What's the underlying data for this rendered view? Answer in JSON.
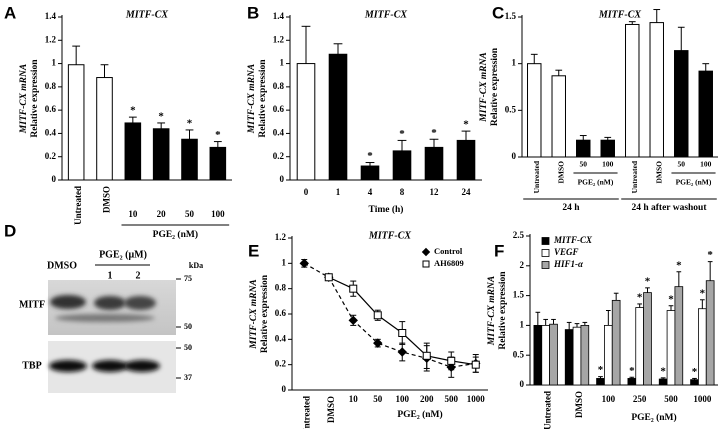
{
  "chart_data": [
    {
      "panel": "A",
      "type": "bar",
      "title": "MITF-CX",
      "ylabel": [
        "MITF-CX mRNA",
        "Relative expression"
      ],
      "categories": [
        "Untreated",
        "DMSO",
        "10",
        "20",
        "50",
        "100"
      ],
      "values": [
        0.99,
        0.88,
        0.49,
        0.44,
        0.35,
        0.28
      ],
      "errors": [
        0.16,
        0.11,
        0.05,
        0.05,
        0.08,
        0.05
      ],
      "colors": [
        "#ffffff",
        "#ffffff",
        "#000000",
        "#000000",
        "#000000",
        "#000000"
      ],
      "stars": [
        null,
        null,
        "*",
        "*",
        "*",
        "*"
      ],
      "group_labels": [
        "PGE₂ (nM)"
      ],
      "ylim": [
        0,
        1.4
      ],
      "yticks": [
        0,
        0.2,
        0.4,
        0.6,
        0.8,
        1,
        1.2,
        1.4
      ]
    },
    {
      "panel": "B",
      "type": "bar",
      "title": "MITF-CX",
      "ylabel": [
        "MITF-CX mRNA",
        "Relative expression"
      ],
      "xlabel": "Time (h)",
      "categories": [
        "0",
        "1",
        "4",
        "8",
        "12",
        "24"
      ],
      "values": [
        1.0,
        1.08,
        0.12,
        0.25,
        0.28,
        0.34
      ],
      "errors": [
        0.32,
        0.09,
        0.03,
        0.09,
        0.07,
        0.08
      ],
      "colors": [
        "#ffffff",
        "#000000",
        "#000000",
        "#000000",
        "#000000",
        "#000000"
      ],
      "stars": [
        null,
        null,
        "*",
        "*",
        "*",
        "*"
      ],
      "ylim": [
        0,
        1.4
      ],
      "yticks": [
        0,
        0.2,
        0.4,
        0.6,
        0.8,
        1,
        1.2,
        1.4
      ]
    },
    {
      "panel": "C",
      "type": "bar",
      "title": "MITF-CX",
      "ylabel": [
        "MITF-CX mRNA",
        "Relative expression"
      ],
      "categories": [
        "Untreated",
        "DMSO",
        "50",
        "100",
        "Untreated",
        "DMSO",
        "50",
        "100"
      ],
      "values": [
        1.0,
        0.87,
        0.18,
        0.18,
        1.42,
        1.44,
        1.14,
        0.92
      ],
      "errors": [
        0.1,
        0.06,
        0.05,
        0.03,
        0.03,
        0.14,
        0.25,
        0.08
      ],
      "colors": [
        "#ffffff",
        "#ffffff",
        "#000000",
        "#000000",
        "#ffffff",
        "#ffffff",
        "#000000",
        "#000000"
      ],
      "group_labels": [
        "PGE₂ (nM)",
        "PGE₂ (nM)"
      ],
      "section_labels": [
        "24 h",
        "24 h after washout"
      ],
      "ylim": [
        0,
        1.5
      ],
      "yticks": [
        0,
        0.5,
        1,
        1.5
      ]
    },
    {
      "panel": "E",
      "type": "line",
      "title": "MITF-CX",
      "ylabel": [
        "MITF-CX mRNA",
        "Relative expression"
      ],
      "xlabel": "PGE₂ (nM)",
      "categories": [
        "Untreated",
        "DMSO",
        "10",
        "50",
        "100",
        "200",
        "500",
        "1000"
      ],
      "series": [
        {
          "name": "Control",
          "color": "#000000",
          "marker": "diamond",
          "line_style": "dashed",
          "values": [
            1.0,
            0.89,
            0.55,
            0.37,
            0.3,
            0.25,
            0.18,
            0.21
          ],
          "errors": [
            0.03,
            0.01,
            0.04,
            0.03,
            0.07,
            0.1,
            0.08,
            0.07
          ]
        },
        {
          "name": "AH6809",
          "color": "#ffffff",
          "marker": "square",
          "line_style": "solid",
          "values": [
            null,
            0.89,
            0.8,
            0.59,
            0.45,
            0.27,
            0.23,
            0.2
          ],
          "errors": [
            null,
            0.01,
            0.06,
            0.04,
            0.09,
            0.1,
            0.07,
            0.06
          ]
        }
      ],
      "legend": "top-right",
      "ylim": [
        0,
        1.2
      ],
      "yticks": [
        0,
        0.2,
        0.4,
        0.6,
        0.8,
        1,
        1.2
      ]
    },
    {
      "panel": "F",
      "type": "grouped_bar",
      "ylabel": [
        "MITF-CX mRNA",
        "Relative expression"
      ],
      "xlabel": "PGE₂ (nM)",
      "categories": [
        "Untreated",
        "DMSO",
        "100",
        "250",
        "500",
        "1000"
      ],
      "series": [
        {
          "name": "MITF-CX",
          "color": "#000000",
          "values": [
            1.0,
            0.93,
            0.11,
            0.11,
            0.1,
            0.09
          ],
          "errors": [
            0.22,
            0.12,
            0.03,
            0.02,
            0.02,
            0.02
          ],
          "stars": [
            null,
            null,
            "*",
            "*",
            "*",
            "*"
          ]
        },
        {
          "name": "VEGF",
          "color": "#ffffff",
          "values": [
            1.0,
            0.97,
            1.0,
            1.3,
            1.25,
            1.28
          ],
          "errors": [
            0.1,
            0.06,
            0.25,
            0.06,
            0.08,
            0.15
          ],
          "stars": [
            null,
            null,
            null,
            "*",
            "*",
            "*"
          ]
        },
        {
          "name": "HIF1-α",
          "color": "#a6a6a6",
          "values": [
            1.02,
            1.0,
            1.42,
            1.55,
            1.65,
            1.75
          ],
          "errors": [
            0.08,
            0.05,
            0.12,
            0.08,
            0.25,
            0.32
          ],
          "stars": [
            null,
            null,
            null,
            "*",
            "*",
            "*"
          ]
        }
      ],
      "legend": "top-left",
      "ylim": [
        0,
        2.5
      ],
      "yticks": [
        0,
        0.5,
        1,
        1.5,
        2,
        2.5
      ]
    }
  ],
  "blot": {
    "panel": "D",
    "lanes": [
      "DMSO",
      "1",
      "2"
    ],
    "treatment": "PGE₂ (μM)",
    "unit": "kDa",
    "markers": [
      "75",
      "50",
      "50",
      "37"
    ],
    "proteins": [
      "MITF",
      "TBP"
    ]
  }
}
